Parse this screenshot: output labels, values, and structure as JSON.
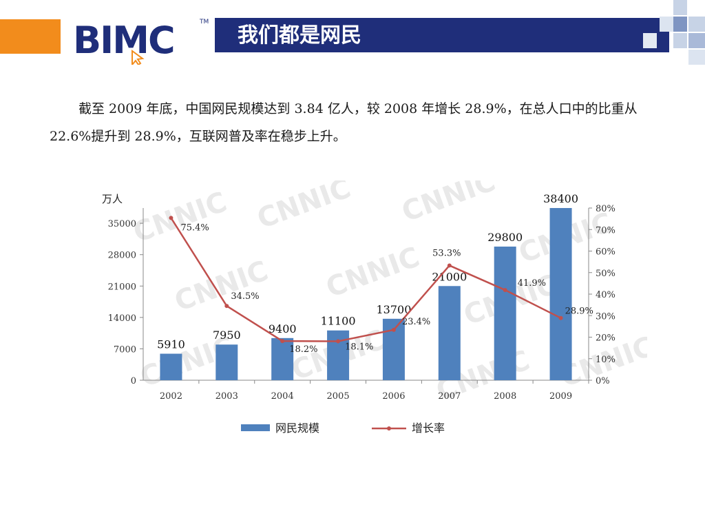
{
  "header": {
    "logo_text": "BIMC",
    "logo_tm": "TM",
    "title": "我们都是网民",
    "colors": {
      "orange": "#f28c1c",
      "navy": "#1f2e7a"
    }
  },
  "paragraph": "截至 2009 年底，中国网民规模达到 3.84 亿人，较 2008 年增长 28.9%，在总人口中的比重从 22.6%提升到 28.9%，互联网普及率在稳步上升。",
  "chart_data": {
    "type": "bar",
    "categories": [
      "2002",
      "2003",
      "2004",
      "2005",
      "2006",
      "2007",
      "2008",
      "2009"
    ],
    "y_unit": "万人",
    "ylim": [
      0,
      38400
    ],
    "y_ticks": [
      0,
      7000,
      14000,
      21000,
      28000,
      35000
    ],
    "y2lim": [
      0,
      80
    ],
    "y2_ticks": [
      "0%",
      "10%",
      "20%",
      "30%",
      "40%",
      "50%",
      "60%",
      "70%",
      "80%"
    ],
    "series": [
      {
        "name": "网民规模",
        "kind": "bar",
        "color": "#4f81bd",
        "values": [
          5910,
          7950,
          9400,
          11100,
          13700,
          21000,
          29800,
          38400
        ],
        "labels": [
          "5910",
          "7950",
          "9400",
          "11100",
          "13700",
          "21000",
          "29800",
          "38400"
        ]
      },
      {
        "name": "增长率",
        "kind": "line",
        "axis": "right",
        "color": "#c0504d",
        "values": [
          75.4,
          34.5,
          18.2,
          18.1,
          23.4,
          53.3,
          41.9,
          28.9
        ],
        "labels": [
          "75.4%",
          "34.5%",
          "18.2%",
          "18.1%",
          "23.4%",
          "53.3%",
          "41.9%",
          "28.9%"
        ]
      }
    ],
    "legend_position": "bottom",
    "watermark": "CNNIC"
  }
}
